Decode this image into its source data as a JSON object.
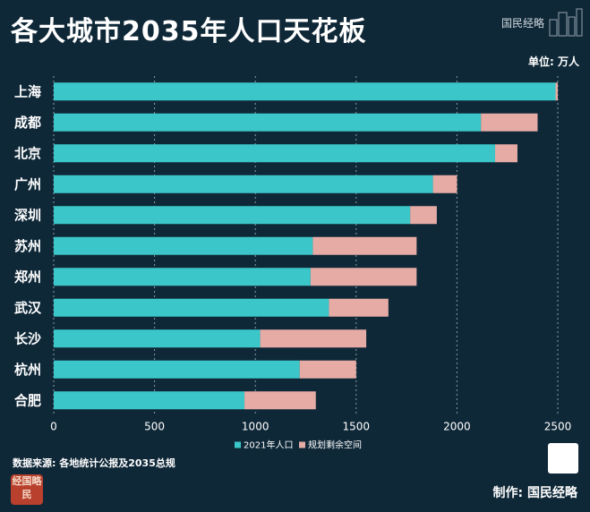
{
  "header": {
    "title": "各大城市2035年人口天花板",
    "brand": "国民经略",
    "unit": "单位: 万人"
  },
  "footer": {
    "source": "数据来源: 各地统计公报及2035总规",
    "maker": "制作: 国民经略",
    "seal_text": "经国略民"
  },
  "colors": {
    "background": "#0f2838",
    "population": "#3bc7c9",
    "remaining": "#e7aba5",
    "grid": "#8a9aa6"
  },
  "chart_data": {
    "type": "bar",
    "orientation": "horizontal",
    "stacked": true,
    "categories": [
      "上海",
      "成都",
      "北京",
      "广州",
      "深圳",
      "苏州",
      "郑州",
      "武汉",
      "长沙",
      "杭州",
      "合肥"
    ],
    "series": [
      {
        "name": "2021年人口",
        "color": "#3bc7c9",
        "values": [
          2489,
          2119,
          2189,
          1881,
          1768,
          1285,
          1274,
          1365,
          1024,
          1220,
          946
        ]
      },
      {
        "name": "规划剩余空间",
        "color": "#e7aba5",
        "values": [
          11,
          281,
          111,
          119,
          132,
          515,
          526,
          295,
          526,
          280,
          354
        ]
      }
    ],
    "totals": [
      2500,
      2400,
      2300,
      2000,
      1900,
      1800,
      1800,
      1660,
      1550,
      1500,
      1300
    ],
    "xlim": [
      0,
      2500
    ],
    "xticks": [
      "0",
      "500",
      "1000",
      "1500",
      "2000",
      "2500"
    ],
    "grid": "vertical dashed",
    "legend_position": "bottom-center"
  }
}
